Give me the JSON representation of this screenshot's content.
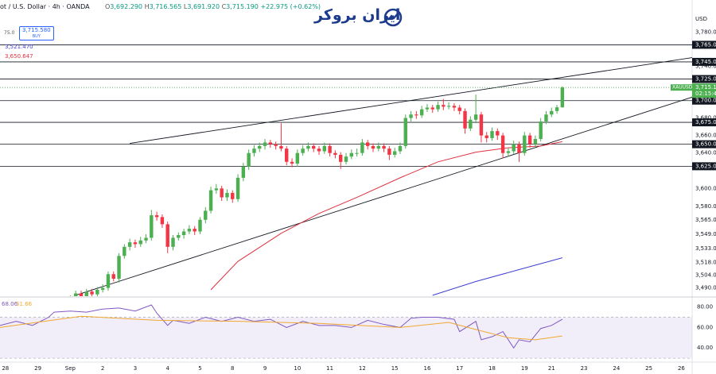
{
  "header": {
    "symbol_title": "ot / U.S. Dollar · 4h · OANDA",
    "ohlc": [
      "O",
      "3,692.290",
      "H",
      "3,716.565",
      "L",
      "3,691.920",
      "C",
      "3,715.190",
      "+22.975 (+0.62%)"
    ],
    "spread": "75.0",
    "buy_price": "3,715.580",
    "buy_label": "BUY",
    "indicator_values": [
      {
        "text": "3,521.470",
        "color": "#3f3fd0"
      },
      {
        "text": "3,650.647",
        "color": "#e0313f"
      }
    ],
    "logo": "ایران بروکر"
  },
  "chart_data": [
    {
      "type": "candlestick",
      "currency": "USD",
      "symbol": "XAUUSD",
      "countdown": "02:15:44",
      "up_color": "#4caf50",
      "down_color": "#f23645",
      "log": true,
      "xlim": [
        -13,
        115
      ],
      "ylim": [
        3481,
        3818
      ],
      "xticks": [
        {
          "value": -12,
          "label": "28"
        },
        {
          "value": -6,
          "label": "29"
        },
        {
          "value": 0,
          "label": "Sep"
        },
        {
          "value": 6,
          "label": "2"
        },
        {
          "value": 12,
          "label": "3"
        },
        {
          "value": 18,
          "label": "4"
        },
        {
          "value": 24,
          "label": "5"
        },
        {
          "value": 30,
          "label": "8"
        },
        {
          "value": 36,
          "label": "9"
        },
        {
          "value": 42,
          "label": "10"
        },
        {
          "value": 48,
          "label": "11"
        },
        {
          "value": 54,
          "label": "12"
        },
        {
          "value": 60,
          "label": "15"
        },
        {
          "value": 66,
          "label": "16"
        },
        {
          "value": 72,
          "label": "17"
        },
        {
          "value": 78,
          "label": "18"
        },
        {
          "value": 84,
          "label": "19"
        },
        {
          "value": 89,
          "label": "21"
        },
        {
          "value": 95,
          "label": "23"
        },
        {
          "value": 101,
          "label": "24"
        },
        {
          "value": 107,
          "label": "25"
        },
        {
          "value": 113,
          "label": "26"
        }
      ],
      "yticks": [
        {
          "value": 3780,
          "label": "3,780.00"
        },
        {
          "value": 3740,
          "label": "3,740.00"
        },
        {
          "value": 3680,
          "label": "3,680.00"
        },
        {
          "value": 3660,
          "label": "3,660.00"
        },
        {
          "value": 3640,
          "label": "3,640.00"
        },
        {
          "value": 3600,
          "label": "3,600.00"
        },
        {
          "value": 3580,
          "label": "3,580.00"
        },
        {
          "value": 3565,
          "label": "3,565.00"
        },
        {
          "value": 3549,
          "label": "3,549.00"
        },
        {
          "value": 3533,
          "label": "3,533.00"
        },
        {
          "value": 3518,
          "label": "3,518.00"
        },
        {
          "value": 3504,
          "label": "3,504.00"
        },
        {
          "value": 3490,
          "label": "3,490.00"
        }
      ],
      "levels": [
        {
          "value": 3765,
          "label": "3,765.00"
        },
        {
          "value": 3745,
          "label": "3,745.00"
        },
        {
          "value": 3725,
          "label": "3,725.00"
        },
        {
          "value": 3700,
          "label": "3,700.00"
        },
        {
          "value": 3675,
          "label": "3,675.00"
        },
        {
          "value": 3650,
          "label": "3,650.00"
        },
        {
          "value": 3625,
          "label": "3,625.00"
        }
      ],
      "last_price": {
        "value": 3715.19,
        "label": "3,715.19"
      },
      "ohlc": [
        [
          3476,
          3482,
          3473,
          3480
        ],
        [
          3480,
          3487,
          3477,
          3484
        ],
        [
          3484,
          3487,
          3476,
          3479
        ],
        [
          3479,
          3489,
          3476,
          3486
        ],
        [
          3486,
          3489,
          3480,
          3483
        ],
        [
          3483,
          3491,
          3480,
          3488
        ],
        [
          3488,
          3494,
          3485,
          3490
        ],
        [
          3490,
          3508,
          3487,
          3505
        ],
        [
          3505,
          3508,
          3497,
          3500
        ],
        [
          3500,
          3528,
          3496,
          3525
        ],
        [
          3525,
          3538,
          3522,
          3535
        ],
        [
          3535,
          3544,
          3531,
          3540
        ],
        [
          3540,
          3543,
          3534,
          3538
        ],
        [
          3538,
          3546,
          3535,
          3542
        ],
        [
          3542,
          3549,
          3539,
          3545
        ],
        [
          3545,
          3576,
          3542,
          3570
        ],
        [
          3570,
          3574,
          3564,
          3568
        ],
        [
          3568,
          3571,
          3556,
          3560
        ],
        [
          3560,
          3563,
          3528,
          3535
        ],
        [
          3535,
          3548,
          3531,
          3545
        ],
        [
          3545,
          3551,
          3542,
          3548
        ],
        [
          3548,
          3555,
          3544,
          3552
        ],
        [
          3552,
          3559,
          3549,
          3555
        ],
        [
          3555,
          3558,
          3548,
          3552
        ],
        [
          3552,
          3568,
          3549,
          3565
        ],
        [
          3565,
          3579,
          3561,
          3575
        ],
        [
          3575,
          3602,
          3572,
          3598
        ],
        [
          3598,
          3605,
          3594,
          3600
        ],
        [
          3600,
          3603,
          3586,
          3590
        ],
        [
          3590,
          3599,
          3586,
          3595
        ],
        [
          3595,
          3598,
          3584,
          3588
        ],
        [
          3588,
          3616,
          3585,
          3612
        ],
        [
          3612,
          3629,
          3608,
          3625
        ],
        [
          3625,
          3644,
          3621,
          3640
        ],
        [
          3640,
          3649,
          3636,
          3645
        ],
        [
          3645,
          3652,
          3641,
          3648
        ],
        [
          3648,
          3656,
          3644,
          3652
        ],
        [
          3652,
          3655,
          3646,
          3650
        ],
        [
          3650,
          3653,
          3644,
          3648
        ],
        [
          3648,
          3674,
          3642,
          3645
        ],
        [
          3645,
          3648,
          3626,
          3630
        ],
        [
          3630,
          3634,
          3624,
          3628
        ],
        [
          3628,
          3644,
          3625,
          3640
        ],
        [
          3640,
          3649,
          3637,
          3645
        ],
        [
          3645,
          3652,
          3642,
          3648
        ],
        [
          3648,
          3651,
          3641,
          3645
        ],
        [
          3645,
          3648,
          3638,
          3642
        ],
        [
          3642,
          3652,
          3639,
          3648
        ],
        [
          3648,
          3651,
          3636,
          3640
        ],
        [
          3640,
          3643,
          3634,
          3638
        ],
        [
          3638,
          3641,
          3622,
          3630
        ],
        [
          3630,
          3640,
          3627,
          3636
        ],
        [
          3636,
          3644,
          3633,
          3640
        ],
        [
          3640,
          3645,
          3636,
          3640
        ],
        [
          3640,
          3656,
          3637,
          3652
        ],
        [
          3652,
          3655,
          3644,
          3648
        ],
        [
          3648,
          3651,
          3641,
          3645
        ],
        [
          3645,
          3652,
          3642,
          3648
        ],
        [
          3648,
          3651,
          3641,
          3645
        ],
        [
          3645,
          3648,
          3632,
          3638
        ],
        [
          3638,
          3646,
          3635,
          3642
        ],
        [
          3642,
          3652,
          3639,
          3648
        ],
        [
          3648,
          3684,
          3645,
          3680
        ],
        [
          3680,
          3688,
          3676,
          3684
        ],
        [
          3684,
          3688,
          3679,
          3683
        ],
        [
          3683,
          3694,
          3680,
          3690
        ],
        [
          3690,
          3696,
          3687,
          3692
        ],
        [
          3692,
          3695,
          3686,
          3690
        ],
        [
          3690,
          3699,
          3687,
          3695
        ],
        [
          3695,
          3702,
          3689,
          3693
        ],
        [
          3693,
          3698,
          3690,
          3694
        ],
        [
          3694,
          3697,
          3688,
          3692
        ],
        [
          3692,
          3695,
          3684,
          3688
        ],
        [
          3688,
          3691,
          3662,
          3668
        ],
        [
          3668,
          3682,
          3665,
          3678
        ],
        [
          3678,
          3707,
          3674,
          3684
        ],
        [
          3684,
          3687,
          3652,
          3660
        ],
        [
          3660,
          3664,
          3652,
          3657
        ],
        [
          3657,
          3669,
          3654,
          3665
        ],
        [
          3665,
          3668,
          3655,
          3660
        ],
        [
          3660,
          3663,
          3634,
          3640
        ],
        [
          3640,
          3646,
          3636,
          3642
        ],
        [
          3642,
          3654,
          3639,
          3650
        ],
        [
          3650,
          3653,
          3630,
          3640
        ],
        [
          3640,
          3664,
          3637,
          3660
        ],
        [
          3660,
          3663,
          3646,
          3650
        ],
        [
          3650,
          3660,
          3647,
          3656
        ],
        [
          3656,
          3680,
          3653,
          3676
        ],
        [
          3676,
          3688,
          3673,
          3684
        ],
        [
          3684,
          3692,
          3681,
          3688
        ],
        [
          3688,
          3695,
          3685,
          3692.29
        ],
        [
          3692.29,
          3716.565,
          3691.92,
          3715.19
        ]
      ],
      "lines": [
        {
          "color": "#e0313f",
          "x": [
            26,
            31,
            39,
            46,
            53,
            61,
            68,
            75,
            81,
            87,
            91
          ],
          "values": [
            3488,
            3519,
            3550,
            3572,
            3590,
            3612,
            3630,
            3641,
            3646,
            3648,
            3653
          ]
        },
        {
          "color": "#3f3fd0",
          "x": [
            67,
            75,
            83,
            91
          ],
          "values": [
            3482,
            3497,
            3510,
            3523
          ]
        }
      ],
      "trendlines": [
        {
          "x": [
            11,
            115
          ],
          "values": [
            3651,
            3750
          ]
        },
        {
          "x": [
            1,
            115
          ],
          "values": [
            3482,
            3704
          ]
        }
      ]
    },
    {
      "type": "line",
      "xlim": [
        -13,
        115
      ],
      "ylim": [
        27,
        89
      ],
      "band": [
        30,
        70
      ],
      "band_color": "#7e57c2",
      "yticks": [
        {
          "value": 80,
          "label": "80.00"
        },
        {
          "value": 60,
          "label": "60.00"
        },
        {
          "value": 40,
          "label": "40.00"
        }
      ],
      "series": [
        {
          "color": "#7e57c2",
          "last_label": "68.06",
          "x": [
            -13,
            -10,
            -7,
            -4,
            -3,
            0,
            3,
            6,
            9,
            12,
            15,
            16,
            18,
            19,
            22,
            25,
            28,
            31,
            34,
            37,
            40,
            43,
            46,
            49,
            52,
            55,
            58,
            61,
            63,
            65,
            68,
            71,
            72,
            75,
            76,
            78,
            80,
            82,
            83,
            85,
            87,
            89,
            91
          ],
          "values": [
            62,
            66,
            62,
            70,
            75,
            76,
            75,
            78,
            79,
            76,
            82,
            74,
            62,
            67,
            64,
            70,
            66,
            70,
            66,
            68,
            60,
            66,
            62,
            62,
            60,
            67,
            63,
            60,
            69,
            70,
            70,
            68,
            56,
            66,
            48,
            51,
            56,
            40,
            48,
            46,
            59,
            62,
            68.06
          ]
        },
        {
          "color": "#f0a830",
          "last_label": "51.66",
          "x": [
            -13,
            2,
            16,
            31,
            46,
            61,
            70,
            75,
            81,
            86,
            91
          ],
          "values": [
            60,
            71,
            67,
            66,
            64,
            60,
            65,
            58,
            50,
            48,
            51.66
          ]
        }
      ]
    }
  ]
}
